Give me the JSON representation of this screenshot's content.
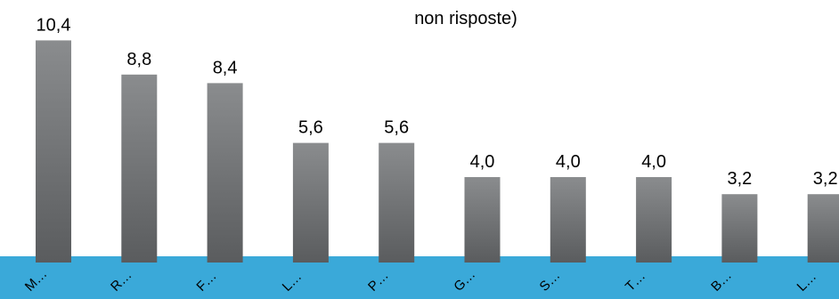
{
  "chart_data": {
    "type": "bar",
    "title": "",
    "subtitle": "non risposte)",
    "xlabel": "",
    "ylabel": "",
    "categories": [
      "M…",
      "R…",
      "F…",
      "L…",
      "P…",
      "G…",
      "S…",
      "T…",
      "B…",
      "L…"
    ],
    "values": [
      10.4,
      8.8,
      8.4,
      5.6,
      5.6,
      4.0,
      4.0,
      4.0,
      3.2,
      3.2
    ],
    "value_labels": [
      "10,4",
      "8,8",
      "8,4",
      "5,6",
      "5,6",
      "4,0",
      "4,0",
      "4,0",
      "3,2",
      "3,2"
    ],
    "ylim": [
      0,
      12
    ],
    "grid": false,
    "legend": "none",
    "colors": {
      "bar_top": "#8a8c8e",
      "bar_bottom": "#5a5c5e",
      "floor": "#3aa9d9",
      "text": "#000000"
    }
  }
}
